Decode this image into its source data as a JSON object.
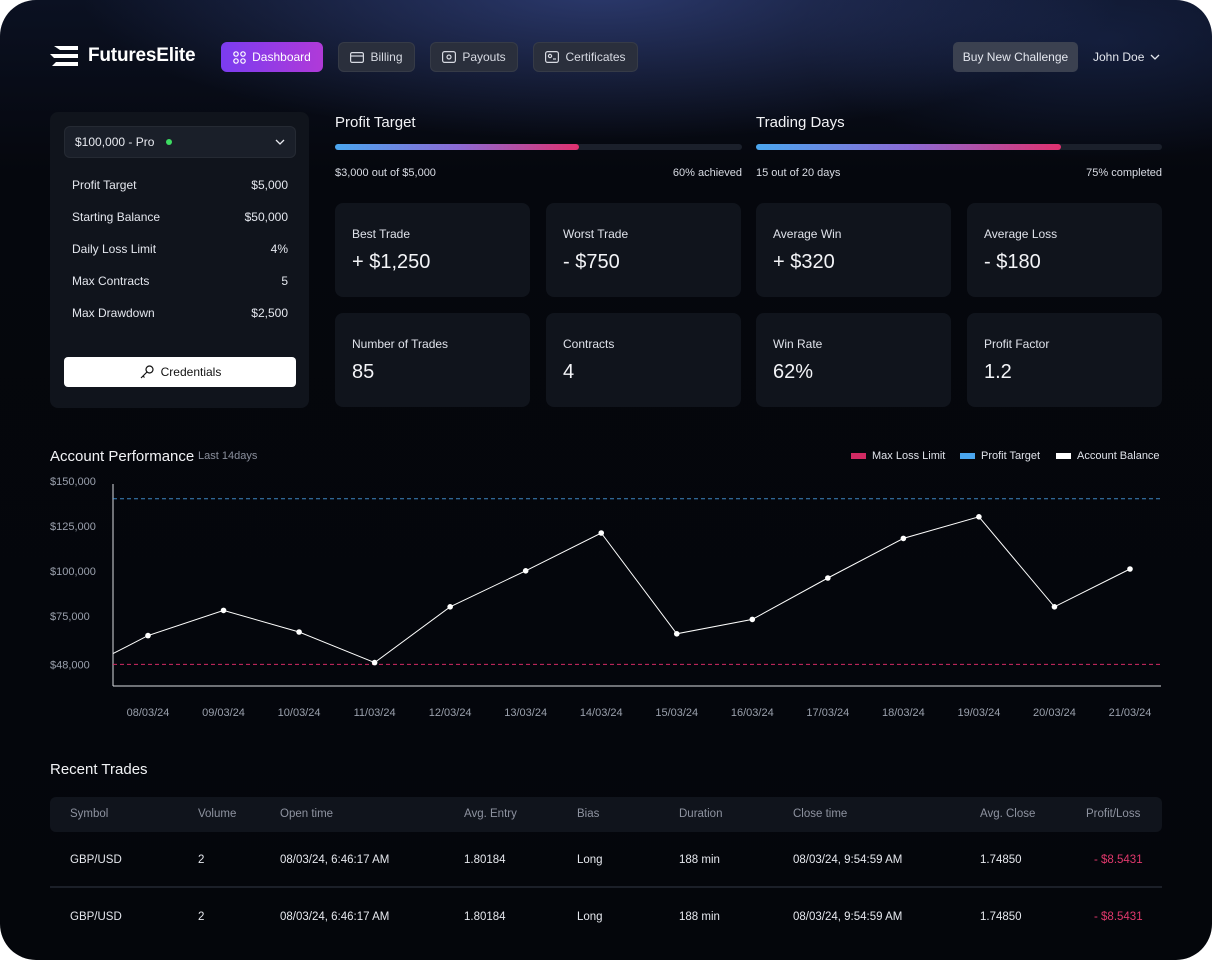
{
  "brand": {
    "name": "FuturesElite"
  },
  "nav": {
    "dashboard": "Dashboard",
    "billing": "Billing",
    "payouts": "Payouts",
    "certificates": "Certificates",
    "buy_challenge": "Buy New Challenge",
    "user": "John Doe"
  },
  "account": {
    "selected": "$100,000 - Pro",
    "rows": [
      {
        "label": "Profit Target",
        "value": "$5,000"
      },
      {
        "label": "Starting Balance",
        "value": "$50,000"
      },
      {
        "label": "Daily Loss Limit",
        "value": "4%"
      },
      {
        "label": "Max Contracts",
        "value": "5"
      },
      {
        "label": "Max Drawdown",
        "value": "$2,500"
      }
    ],
    "credentials": "Credentials"
  },
  "profit_target": {
    "title": "Profit Target",
    "progress": 0.6,
    "detail": "$3,000 out of $5,000",
    "status": "60% achieved"
  },
  "trading_days": {
    "title": "Trading Days",
    "progress": 0.75,
    "detail": "15 out of 20 days",
    "status": "75% completed"
  },
  "stats": [
    {
      "label": "Best Trade",
      "value": "+ $1,250"
    },
    {
      "label": "Worst Trade",
      "value": "- $750"
    },
    {
      "label": "Average Win",
      "value": "+ $320"
    },
    {
      "label": "Average Loss",
      "value": "- $180"
    },
    {
      "label": "Number of Trades",
      "value": "85"
    },
    {
      "label": "Contracts",
      "value": "4"
    },
    {
      "label": "Win Rate",
      "value": "62%"
    },
    {
      "label": "Profit Factor",
      "value": "1.2"
    }
  ],
  "performance": {
    "title": "Account Performance",
    "subtitle": "Last 14days",
    "legend": {
      "max_loss": "Max Loss Limit",
      "profit_target": "Profit Target",
      "balance": "Account Balance"
    }
  },
  "colors": {
    "max_loss": "#d12a63",
    "profit_target": "#4aa6ef",
    "balance": "#ffffff"
  },
  "chart_data": {
    "type": "line",
    "title": "Account Performance",
    "subtitle": "Last 14days",
    "categories": [
      "08/03/24",
      "09/03/24",
      "10/03/24",
      "11/03/24",
      "12/03/24",
      "13/03/24",
      "14/03/24",
      "15/03/24",
      "16/03/24",
      "17/03/24",
      "18/03/24",
      "19/03/24",
      "20/03/24",
      "21/03/24"
    ],
    "y_ticks": [
      "$150,000",
      "$125,000",
      "$100,000",
      "$75,000",
      "$48,000"
    ],
    "ylim": [
      36000,
      156000
    ],
    "start_value": 54000,
    "series": [
      {
        "name": "Account Balance",
        "values": [
          64000,
          78000,
          66000,
          49000,
          80000,
          100000,
          121000,
          65000,
          73000,
          96000,
          118000,
          130000,
          80000,
          101000
        ]
      }
    ],
    "reference_lines": [
      {
        "name": "Profit Target",
        "value": 140000
      },
      {
        "name": "Max Loss Limit",
        "value": 48000
      }
    ],
    "grid": false
  },
  "recent_trades": {
    "title": "Recent Trades",
    "headers": [
      "Symbol",
      "Volume",
      "Open time",
      "Avg. Entry",
      "Bias",
      "Duration",
      "Close time",
      "Avg. Close",
      "Profit/Loss"
    ],
    "rows": [
      [
        "GBP/USD",
        "2",
        "08/03/24, 6:46:17 AM",
        "1.80184",
        "Long",
        "188 min",
        "08/03/24, 9:54:59 AM",
        "1.74850",
        "- $8.5431"
      ],
      [
        "GBP/USD",
        "2",
        "08/03/24, 6:46:17 AM",
        "1.80184",
        "Long",
        "188 min",
        "08/03/24, 9:54:59 AM",
        "1.74850",
        "- $8.5431"
      ]
    ]
  }
}
